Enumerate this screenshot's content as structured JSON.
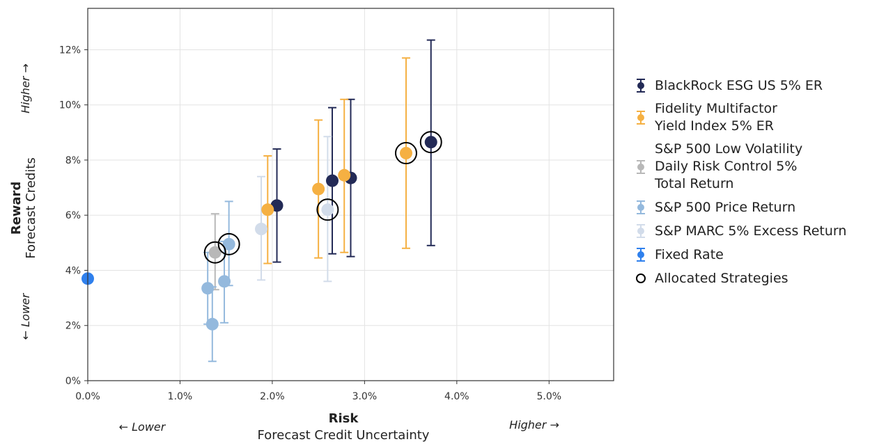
{
  "chart_data": {
    "type": "scatter",
    "xlabel_bold": "Risk",
    "xlabel": "Forecast Credit Uncertainty",
    "ylabel_bold": "Reward",
    "ylabel": "Forecast Credits",
    "x_low_label": "← Lower",
    "x_high_label": "Higher →",
    "y_low_label": "← Lower",
    "y_high_label": "Higher →",
    "xlim": [
      0,
      5.7
    ],
    "ylim": [
      0,
      13.5
    ],
    "x_ticks": [
      0,
      1,
      2,
      3,
      4,
      5
    ],
    "x_tick_labels": [
      "0.0%",
      "1.0%",
      "2.0%",
      "3.0%",
      "4.0%",
      "5.0%"
    ],
    "y_ticks": [
      0,
      2,
      4,
      6,
      8,
      10,
      12
    ],
    "y_tick_labels": [
      "0%",
      "2%",
      "4%",
      "6%",
      "8%",
      "10%",
      "12%"
    ],
    "grid": true,
    "legend_position": "right",
    "series": [
      {
        "name": "BlackRock ESG US 5% ER",
        "color": "#232a56",
        "points": [
          {
            "x": 2.05,
            "y": 6.35,
            "lo": 4.3,
            "hi": 8.4,
            "allocated": false
          },
          {
            "x": 2.65,
            "y": 7.25,
            "lo": 4.6,
            "hi": 9.9,
            "allocated": false
          },
          {
            "x": 2.85,
            "y": 7.35,
            "lo": 4.5,
            "hi": 10.2,
            "allocated": false
          },
          {
            "x": 3.72,
            "y": 8.65,
            "lo": 4.9,
            "hi": 12.35,
            "allocated": true
          }
        ]
      },
      {
        "name": "Fidelity Multifactor\nYield Index 5% ER",
        "color": "#f5b042",
        "points": [
          {
            "x": 1.95,
            "y": 6.2,
            "lo": 4.25,
            "hi": 8.15,
            "allocated": false
          },
          {
            "x": 2.5,
            "y": 6.95,
            "lo": 4.45,
            "hi": 9.45,
            "allocated": false
          },
          {
            "x": 2.78,
            "y": 7.45,
            "lo": 4.65,
            "hi": 10.2,
            "allocated": false
          },
          {
            "x": 3.45,
            "y": 8.25,
            "lo": 4.8,
            "hi": 11.7,
            "allocated": true
          }
        ]
      },
      {
        "name": "S&P 500 Low Volatility\nDaily Risk Control 5%\nTotal Return",
        "color": "#b8b8b8",
        "points": [
          {
            "x": 1.38,
            "y": 4.65,
            "lo": 3.3,
            "hi": 6.05,
            "allocated": true
          }
        ]
      },
      {
        "name": "S&P 500 Price Return",
        "color": "#94b9dd",
        "points": [
          {
            "x": 1.3,
            "y": 3.35,
            "lo": 2.05,
            "hi": 4.65,
            "allocated": false
          },
          {
            "x": 1.35,
            "y": 2.05,
            "lo": 0.7,
            "hi": 3.4,
            "allocated": false
          },
          {
            "x": 1.48,
            "y": 3.6,
            "lo": 2.1,
            "hi": 5.05,
            "allocated": false
          },
          {
            "x": 1.53,
            "y": 4.95,
            "lo": 3.45,
            "hi": 6.5,
            "allocated": true
          }
        ]
      },
      {
        "name": "S&P MARC 5% Excess Return",
        "color": "#d2dcea",
        "points": [
          {
            "x": 1.88,
            "y": 5.5,
            "lo": 3.65,
            "hi": 7.4,
            "allocated": false
          },
          {
            "x": 2.6,
            "y": 6.2,
            "lo": 3.6,
            "hi": 8.85,
            "allocated": true
          }
        ]
      },
      {
        "name": "Fixed Rate",
        "color": "#2f80ed",
        "points": [
          {
            "x": 0.0,
            "y": 3.7,
            "lo": null,
            "hi": null,
            "allocated": false
          }
        ]
      }
    ],
    "allocated_legend_label": "Allocated Strategies"
  }
}
